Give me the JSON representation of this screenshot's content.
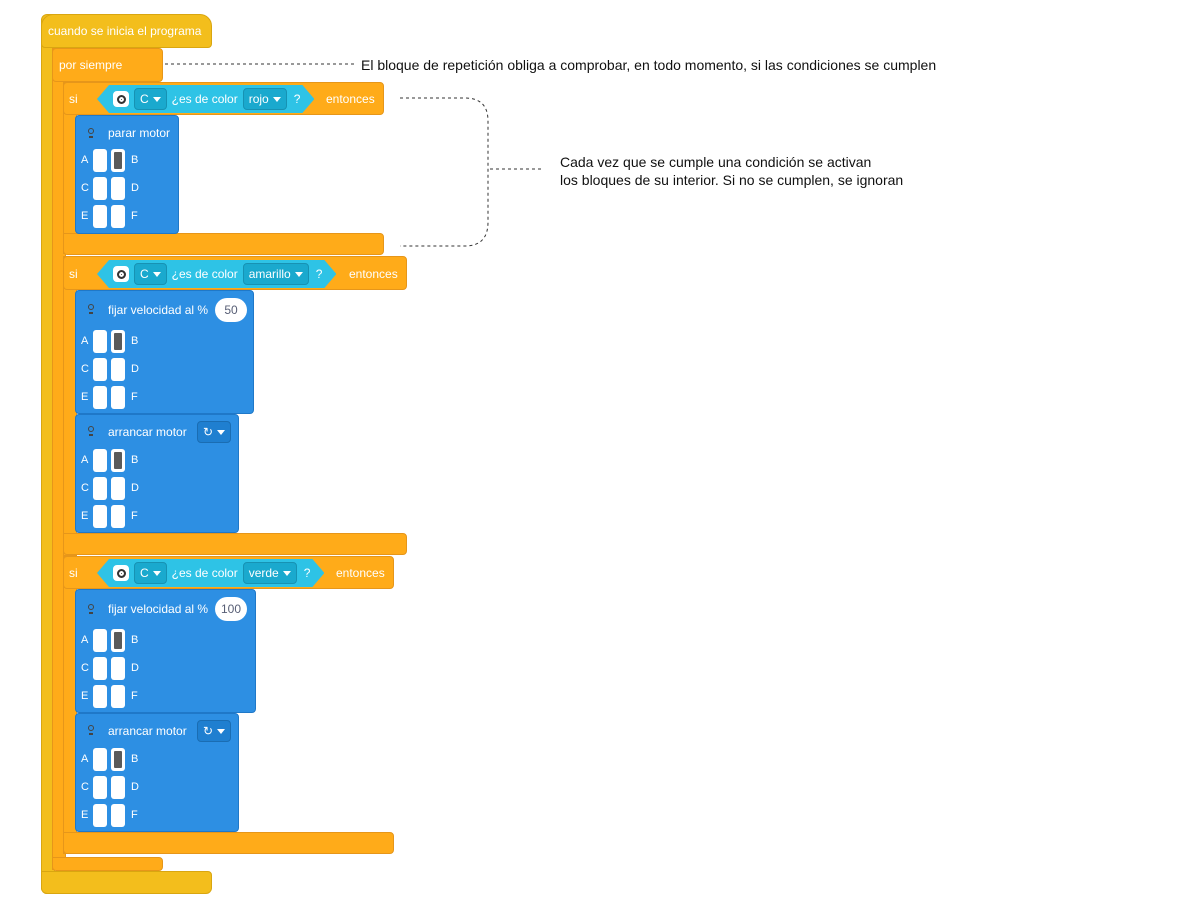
{
  "event_block": {
    "label": "cuando se inicia el programa"
  },
  "forever_block": {
    "label": "por siempre"
  },
  "if_blocks": [
    {
      "if_label": "si",
      "then_label": "entonces",
      "condition": {
        "port": "C",
        "text": "¿es de color",
        "color": "rojo",
        "question": "?"
      },
      "actions": [
        {
          "label": "parar motor",
          "ports": [
            "A",
            "B",
            "C",
            "D",
            "E",
            "F"
          ],
          "selected": "B"
        }
      ]
    },
    {
      "if_label": "si",
      "then_label": "entonces",
      "condition": {
        "port": "C",
        "text": "¿es de color",
        "color": "amarillo",
        "question": "?"
      },
      "actions": [
        {
          "label": "fijar velocidad al %",
          "value": "50",
          "ports": [
            "A",
            "B",
            "C",
            "D",
            "E",
            "F"
          ],
          "selected": "B"
        },
        {
          "label": "arrancar motor",
          "direction_icon": "clockwise-icon",
          "ports": [
            "A",
            "B",
            "C",
            "D",
            "E",
            "F"
          ],
          "selected": "B"
        }
      ]
    },
    {
      "if_label": "si",
      "then_label": "entonces",
      "condition": {
        "port": "C",
        "text": "¿es de color",
        "color": "verde",
        "question": "?"
      },
      "actions": [
        {
          "label": "fijar velocidad al %",
          "value": "100",
          "ports": [
            "A",
            "B",
            "C",
            "D",
            "E",
            "F"
          ],
          "selected": "B"
        },
        {
          "label": "arrancar motor",
          "direction_icon": "clockwise-icon",
          "ports": [
            "A",
            "B",
            "C",
            "D",
            "E",
            "F"
          ],
          "selected": "B"
        }
      ]
    }
  ],
  "annotations": {
    "forever_note": "El bloque de repetición obliga a comprobar, en todo momento, si las condiciones se cumplen",
    "condition_note_line1": "Cada vez que se cumple una condición se activan",
    "condition_note_line2": "los bloques de su interior. Si no se cumplen, se ignoran"
  },
  "colors": {
    "event": "#F3BE1C",
    "control": "#FFAB19",
    "motor": "#2D8FE3",
    "sensor": "#2EC3E6",
    "selected_port": "#5A5A5A"
  }
}
